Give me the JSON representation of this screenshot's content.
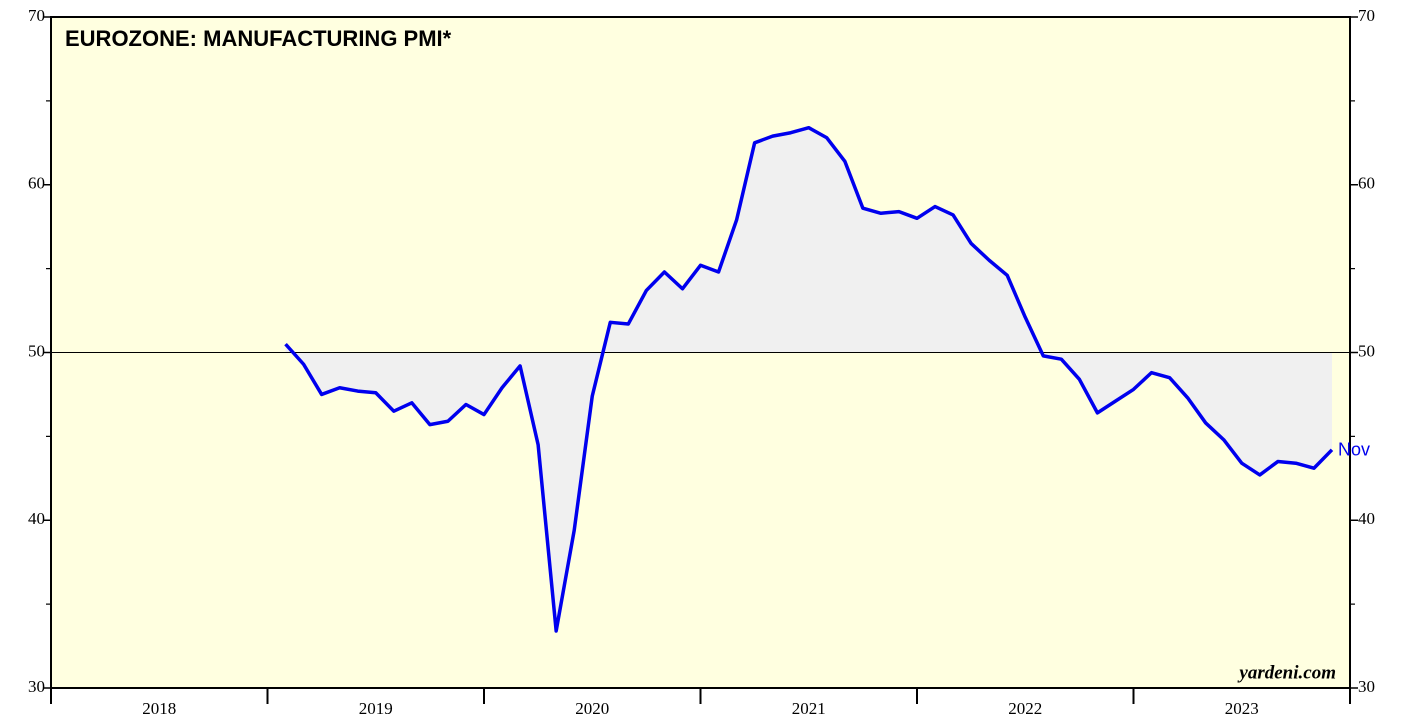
{
  "chart_data": {
    "type": "line",
    "title": "EUROZONE: MANUFACTURING PMI*",
    "watermark": "yardeni.com",
    "end_label": "Nov",
    "xlim": [
      "2018-01",
      "2023-12"
    ],
    "year_labels": [
      "2018",
      "2019",
      "2020",
      "2021",
      "2022",
      "2023"
    ],
    "ylim": [
      30,
      70
    ],
    "yticks": [
      30,
      40,
      50,
      60,
      70
    ],
    "yminor": [
      35,
      45,
      55,
      65
    ],
    "hline": 50,
    "background": "#ffffe0",
    "fill_color": "#f0f0f0",
    "x": [
      "2019-01",
      "2019-02",
      "2019-03",
      "2019-04",
      "2019-05",
      "2019-06",
      "2019-07",
      "2019-08",
      "2019-09",
      "2019-10",
      "2019-11",
      "2019-12",
      "2020-01",
      "2020-02",
      "2020-03",
      "2020-04",
      "2020-05",
      "2020-06",
      "2020-07",
      "2020-08",
      "2020-09",
      "2020-10",
      "2020-11",
      "2020-12",
      "2021-01",
      "2021-02",
      "2021-03",
      "2021-04",
      "2021-05",
      "2021-06",
      "2021-07",
      "2021-08",
      "2021-09",
      "2021-10",
      "2021-11",
      "2021-12",
      "2022-01",
      "2022-02",
      "2022-03",
      "2022-04",
      "2022-05",
      "2022-06",
      "2022-07",
      "2022-08",
      "2022-09",
      "2022-10",
      "2022-11",
      "2022-12",
      "2023-01",
      "2023-02",
      "2023-03",
      "2023-04",
      "2023-05",
      "2023-06",
      "2023-07",
      "2023-08",
      "2023-09",
      "2023-10",
      "2023-11"
    ],
    "series": [
      {
        "name": "Eurozone Manufacturing PMI",
        "color": "#0000ee",
        "values": [
          50.5,
          49.3,
          47.5,
          47.9,
          47.7,
          47.6,
          46.5,
          47.0,
          45.7,
          45.9,
          46.9,
          46.3,
          47.9,
          49.2,
          44.5,
          33.4,
          39.4,
          47.4,
          51.8,
          51.7,
          53.7,
          54.8,
          53.8,
          55.2,
          54.8,
          57.9,
          62.5,
          62.9,
          63.1,
          63.4,
          62.8,
          61.4,
          58.6,
          58.3,
          58.4,
          58.0,
          58.7,
          58.2,
          56.5,
          55.5,
          54.6,
          52.1,
          49.8,
          49.6,
          48.4,
          46.4,
          47.1,
          47.8,
          48.8,
          48.5,
          47.3,
          45.8,
          44.8,
          43.4,
          42.7,
          43.5,
          43.4,
          43.1,
          44.2
        ]
      }
    ]
  }
}
